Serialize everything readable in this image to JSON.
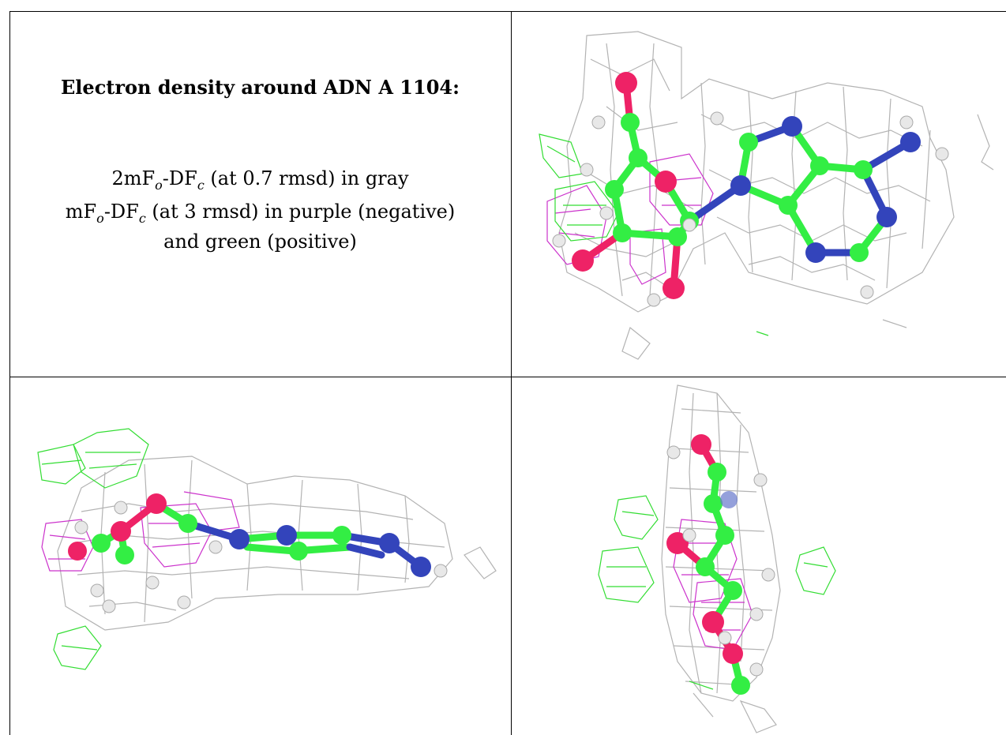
{
  "caption": {
    "title": "Electron density around ADN A 1104:",
    "line1": {
      "a": "2mF",
      "b": "o",
      "c": "-DF",
      "d": "c",
      "e": " (at 0.7 rmsd) in gray"
    },
    "line2": {
      "a": "mF",
      "b": "o",
      "c": "-DF",
      "d": "c",
      "e": " (at 3 rmsd) in purple (negative)"
    },
    "line3": "and green (positive)"
  },
  "colors": {
    "mesh_2fofc": "#b3b3b3",
    "mesh_negative": "#cc33cc",
    "mesh_positive": "#33dd33",
    "carbon": "#33ee44",
    "nitrogen": "#3344bb",
    "oxygen": "#ee2266",
    "hydrogen": "#e8e8e8",
    "grid_lines": "#000000"
  },
  "panels": [
    {
      "name": "top-right-view"
    },
    {
      "name": "bottom-left-view"
    },
    {
      "name": "bottom-right-view"
    }
  ]
}
